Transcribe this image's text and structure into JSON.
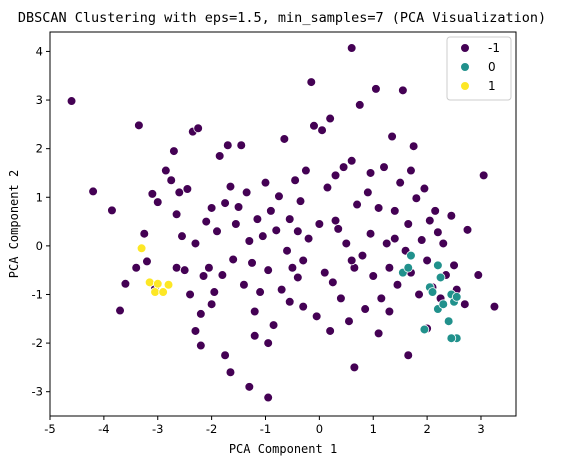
{
  "chart_data": {
    "type": "scatter",
    "title": "DBSCAN Clustering with eps=1.5, min_samples=7 (PCA Visualization)",
    "xlabel": "PCA Component 1",
    "ylabel": "PCA Component 2",
    "xlim": [
      -5.0,
      3.65
    ],
    "ylim": [
      -3.5,
      4.4
    ],
    "xticks": [
      -5,
      -4,
      -3,
      -2,
      -1,
      0,
      1,
      2,
      3
    ],
    "yticks": [
      -3,
      -2,
      -1,
      0,
      1,
      2,
      3,
      4
    ],
    "grid": false,
    "legend": {
      "position": "top-right",
      "entries": [
        "-1",
        "0",
        "1"
      ]
    },
    "colors": {
      "-1": "#440154",
      "0": "#21918c",
      "1": "#fde725"
    },
    "series": [
      {
        "name": "-1",
        "points": [
          [
            -4.6,
            2.98
          ],
          [
            -4.2,
            1.12
          ],
          [
            -3.85,
            0.73
          ],
          [
            -3.7,
            -1.33
          ],
          [
            -3.6,
            -0.78
          ],
          [
            -3.35,
            2.48
          ],
          [
            -3.25,
            0.25
          ],
          [
            -3.2,
            -0.32
          ],
          [
            -3.1,
            1.07
          ],
          [
            -3.05,
            -0.87
          ],
          [
            -3.0,
            0.9
          ],
          [
            -2.85,
            1.55
          ],
          [
            -2.75,
            1.35
          ],
          [
            -2.7,
            1.95
          ],
          [
            -2.65,
            -0.45
          ],
          [
            -2.6,
            1.1
          ],
          [
            -2.55,
            0.2
          ],
          [
            -2.5,
            -0.5
          ],
          [
            -2.45,
            1.17
          ],
          [
            -2.4,
            -1.0
          ],
          [
            -2.35,
            2.35
          ],
          [
            -2.3,
            0.05
          ],
          [
            -2.25,
            2.42
          ],
          [
            -2.2,
            -1.4
          ],
          [
            -2.15,
            -0.62
          ],
          [
            -2.1,
            0.5
          ],
          [
            -2.05,
            -0.45
          ],
          [
            -2.0,
            0.78
          ],
          [
            -1.95,
            -0.95
          ],
          [
            -1.9,
            0.3
          ],
          [
            -1.85,
            1.85
          ],
          [
            -1.8,
            -0.6
          ],
          [
            -1.75,
            0.88
          ],
          [
            -1.7,
            2.07
          ],
          [
            -1.65,
            1.22
          ],
          [
            -1.6,
            -0.28
          ],
          [
            -1.55,
            0.45
          ],
          [
            -1.5,
            0.8
          ],
          [
            -1.45,
            2.07
          ],
          [
            -1.4,
            -0.8
          ],
          [
            -1.35,
            1.1
          ],
          [
            -1.3,
            0.1
          ],
          [
            -1.25,
            -0.35
          ],
          [
            -1.2,
            -1.35
          ],
          [
            -1.15,
            0.55
          ],
          [
            -1.1,
            -0.95
          ],
          [
            -1.05,
            0.2
          ],
          [
            -1.0,
            1.3
          ],
          [
            -0.95,
            -0.5
          ],
          [
            -0.9,
            0.72
          ],
          [
            -0.85,
            -1.63
          ],
          [
            -0.8,
            0.32
          ],
          [
            -0.75,
            1.02
          ],
          [
            -0.7,
            -0.9
          ],
          [
            -0.65,
            2.2
          ],
          [
            -0.6,
            -0.1
          ],
          [
            -0.55,
            0.55
          ],
          [
            -0.5,
            -0.45
          ],
          [
            -0.45,
            1.35
          ],
          [
            -0.4,
            -0.65
          ],
          [
            -0.35,
            0.92
          ],
          [
            -0.3,
            -0.3
          ],
          [
            -0.25,
            1.55
          ],
          [
            -0.2,
            0.15
          ],
          [
            -0.15,
            3.37
          ],
          [
            -0.1,
            2.47
          ],
          [
            -0.05,
            -1.45
          ],
          [
            0.0,
            0.45
          ],
          [
            0.05,
            2.38
          ],
          [
            0.1,
            -0.55
          ],
          [
            0.15,
            1.2
          ],
          [
            0.2,
            2.62
          ],
          [
            0.25,
            -0.75
          ],
          [
            0.3,
            1.45
          ],
          [
            0.35,
            0.35
          ],
          [
            0.4,
            -1.08
          ],
          [
            0.45,
            1.62
          ],
          [
            0.5,
            0.05
          ],
          [
            0.55,
            -1.55
          ],
          [
            0.6,
            1.75
          ],
          [
            0.65,
            -0.45
          ],
          [
            0.7,
            0.85
          ],
          [
            0.75,
            2.9
          ],
          [
            0.8,
            -0.2
          ],
          [
            0.85,
            -1.3
          ],
          [
            0.9,
            1.1
          ],
          [
            0.95,
            0.25
          ],
          [
            1.0,
            -0.62
          ],
          [
            1.05,
            3.23
          ],
          [
            1.1,
            0.78
          ],
          [
            1.15,
            -1.08
          ],
          [
            1.2,
            1.62
          ],
          [
            1.25,
            0.05
          ],
          [
            1.3,
            -0.45
          ],
          [
            1.35,
            2.25
          ],
          [
            1.4,
            0.72
          ],
          [
            1.45,
            -0.8
          ],
          [
            1.5,
            1.3
          ],
          [
            1.55,
            3.2
          ],
          [
            1.6,
            -0.1
          ],
          [
            1.65,
            0.45
          ],
          [
            1.7,
            -0.55
          ],
          [
            1.75,
            2.05
          ],
          [
            1.8,
            0.98
          ],
          [
            1.85,
            -1.0
          ],
          [
            1.9,
            0.12
          ],
          [
            1.95,
            1.18
          ],
          [
            2.0,
            -0.3
          ],
          [
            2.05,
            0.52
          ],
          [
            2.1,
            -0.85
          ],
          [
            2.15,
            0.72
          ],
          [
            2.2,
            0.28
          ],
          [
            2.25,
            -1.08
          ],
          [
            2.3,
            0.05
          ],
          [
            2.35,
            -0.6
          ],
          [
            2.45,
            0.62
          ],
          [
            2.5,
            -0.4
          ],
          [
            2.55,
            -0.9
          ],
          [
            2.7,
            -1.2
          ],
          [
            2.75,
            0.33
          ],
          [
            2.95,
            -0.6
          ],
          [
            3.05,
            1.45
          ],
          [
            3.25,
            -1.25
          ],
          [
            -0.95,
            -3.12
          ],
          [
            -1.3,
            -2.9
          ],
          [
            -1.65,
            -2.6
          ],
          [
            -2.2,
            -2.05
          ],
          [
            -0.95,
            -2.0
          ],
          [
            0.65,
            -2.5
          ],
          [
            1.65,
            -2.25
          ],
          [
            0.6,
            4.07
          ],
          [
            -1.2,
            -1.85
          ],
          [
            -0.55,
            -1.15
          ],
          [
            1.1,
            -1.8
          ],
          [
            0.3,
            0.52
          ],
          [
            0.6,
            -0.3
          ],
          [
            0.95,
            1.5
          ],
          [
            1.7,
            1.55
          ],
          [
            1.4,
            0.15
          ],
          [
            -0.4,
            0.3
          ],
          [
            -2.3,
            -1.75
          ],
          [
            -1.75,
            -2.25
          ],
          [
            -3.4,
            -0.45
          ],
          [
            -2.65,
            0.65
          ],
          [
            -2.0,
            -1.2
          ],
          [
            -0.3,
            -1.25
          ],
          [
            0.2,
            -1.75
          ],
          [
            1.3,
            -1.35
          ],
          [
            2.0,
            -1.7
          ]
        ]
      },
      {
        "name": "0",
        "points": [
          [
            1.55,
            -0.55
          ],
          [
            1.65,
            -0.45
          ],
          [
            1.7,
            -0.2
          ],
          [
            2.05,
            -0.85
          ],
          [
            2.1,
            -0.95
          ],
          [
            2.2,
            -0.4
          ],
          [
            2.2,
            -1.3
          ],
          [
            2.3,
            -1.2
          ],
          [
            2.4,
            -1.55
          ],
          [
            2.45,
            -1.0
          ],
          [
            2.5,
            -1.15
          ],
          [
            2.55,
            -1.05
          ],
          [
            2.55,
            -1.9
          ],
          [
            2.45,
            -1.9
          ],
          [
            1.95,
            -1.72
          ],
          [
            2.25,
            -0.65
          ]
        ]
      },
      {
        "name": "1",
        "points": [
          [
            -3.3,
            -0.05
          ],
          [
            -3.15,
            -0.75
          ],
          [
            -3.05,
            -0.95
          ],
          [
            -2.9,
            -0.95
          ],
          [
            -2.8,
            -0.8
          ],
          [
            -3.0,
            -0.78
          ]
        ]
      }
    ]
  }
}
